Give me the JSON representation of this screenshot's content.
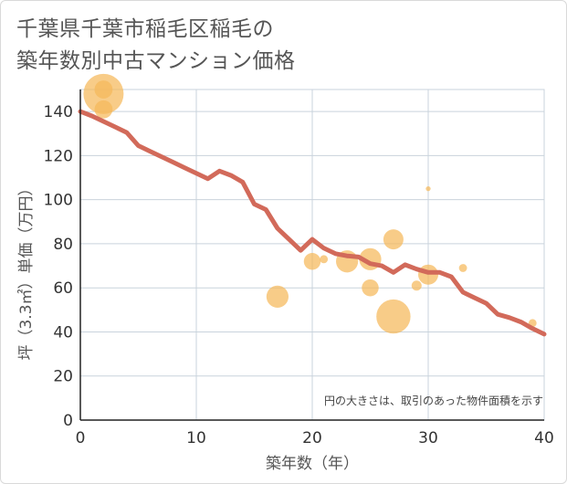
{
  "title_line1": "千葉県千葉市稲毛区稲毛の",
  "title_line2": "築年数別中古マンション価格",
  "chart_data": {
    "type": "scatter",
    "xlabel": "築年数（年）",
    "ylabel": "坪（3.3㎡）単価（万円）",
    "xlim": [
      0,
      40
    ],
    "ylim": [
      0,
      150
    ],
    "xticks": [
      0,
      10,
      20,
      30,
      40
    ],
    "yticks": [
      0,
      20,
      40,
      60,
      80,
      100,
      120,
      140
    ],
    "grid": true,
    "note": "円の大きさは、取引のあった物件面積を示す",
    "colors": {
      "bubble": "#f5b95a",
      "line": "#d26a5a",
      "grid": "#c9d3dc",
      "axis_text": "#333333"
    },
    "scatter_points": [
      {
        "x": 2,
        "y": 148,
        "size": 1.0
      },
      {
        "x": 2,
        "y": 150,
        "size": 0.45
      },
      {
        "x": 2,
        "y": 141,
        "size": 0.45
      },
      {
        "x": 17,
        "y": 56,
        "size": 0.55
      },
      {
        "x": 20,
        "y": 72,
        "size": 0.42
      },
      {
        "x": 21,
        "y": 73,
        "size": 0.2
      },
      {
        "x": 23,
        "y": 72,
        "size": 0.55
      },
      {
        "x": 25,
        "y": 73,
        "size": 0.55
      },
      {
        "x": 25,
        "y": 60,
        "size": 0.42
      },
      {
        "x": 27,
        "y": 82,
        "size": 0.5
      },
      {
        "x": 27,
        "y": 47,
        "size": 0.85
      },
      {
        "x": 29,
        "y": 61,
        "size": 0.25
      },
      {
        "x": 30,
        "y": 105,
        "size": 0.12
      },
      {
        "x": 30,
        "y": 66,
        "size": 0.5
      },
      {
        "x": 33,
        "y": 69,
        "size": 0.2
      },
      {
        "x": 39,
        "y": 44,
        "size": 0.2
      }
    ],
    "trend_line": {
      "x": [
        0,
        1,
        2,
        3,
        4,
        5,
        6,
        7,
        8,
        9,
        10,
        11,
        12,
        13,
        14,
        15,
        16,
        17,
        18,
        19,
        20,
        21,
        22,
        23,
        24,
        25,
        26,
        27,
        28,
        29,
        30,
        31,
        32,
        33,
        34,
        35,
        36,
        37,
        38,
        39,
        40
      ],
      "y": [
        140,
        138,
        135.5,
        133,
        130.5,
        124.5,
        122,
        119.5,
        117,
        114.5,
        112,
        109.5,
        113,
        111,
        108,
        98,
        95.5,
        87,
        82,
        77,
        82,
        78,
        75.5,
        74.5,
        74,
        71,
        70,
        67,
        70.5,
        68.5,
        67,
        67,
        65,
        58,
        55.5,
        53,
        48,
        46.5,
        44.5,
        41.5,
        39
      ]
    }
  }
}
